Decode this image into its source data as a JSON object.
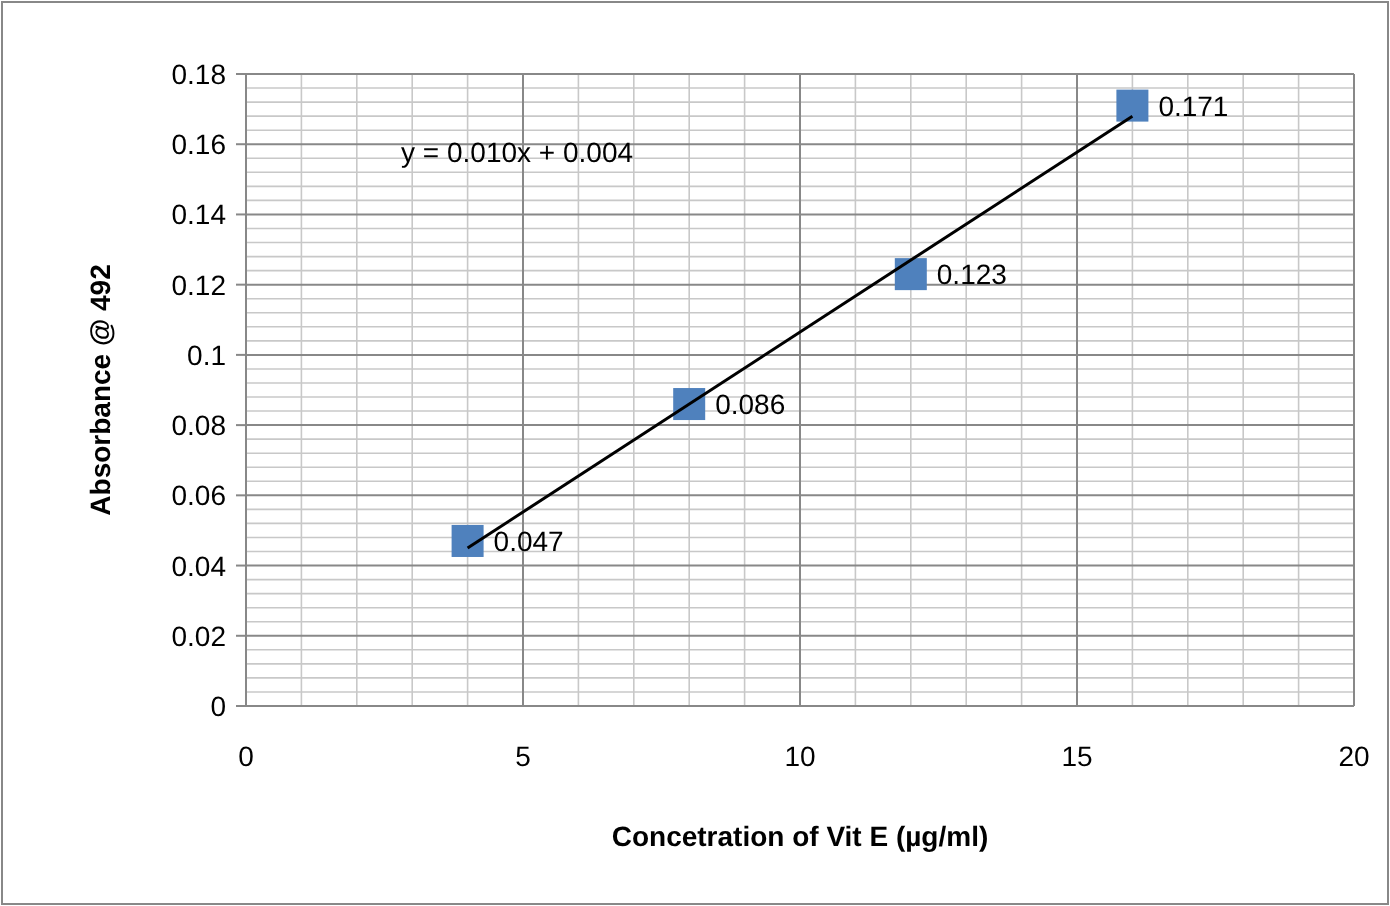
{
  "chart_data": {
    "type": "scatter",
    "xlabel": "Concetration of Vit E (µg/ml)",
    "ylabel": "Absorbance @ 492",
    "x": [
      4,
      8,
      12,
      16
    ],
    "series": [
      {
        "color": "#4f81bd",
        "values": [
          0.047,
          0.086,
          0.123,
          0.171
        ],
        "marker": "square",
        "data_labels": true
      },
      {
        "type": "line",
        "color": "#000000",
        "x": [
          4,
          16
        ],
        "values": [
          0.045,
          0.168
        ],
        "line_style": "solid"
      }
    ],
    "annotations": [
      "y = 0.010x + 0.004"
    ],
    "xlim": [
      0,
      20
    ],
    "xticks": [
      0,
      5,
      10,
      15,
      20
    ],
    "ylim": [
      0,
      0.18
    ],
    "yticks": [
      0,
      0.02,
      0.04,
      0.06,
      0.08,
      0.1,
      0.12,
      0.14,
      0.16,
      0.18
    ],
    "grid": true
  }
}
